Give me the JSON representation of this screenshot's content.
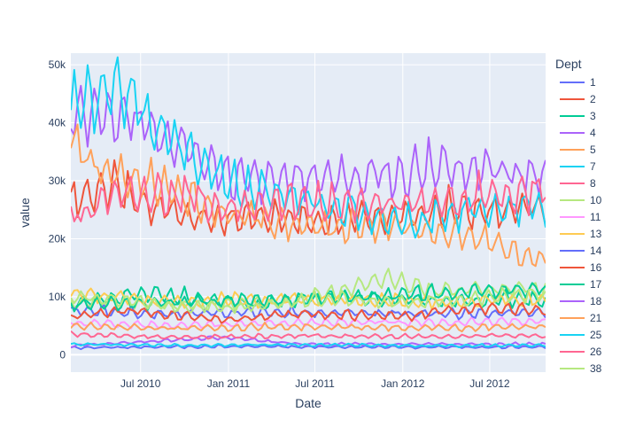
{
  "chart_data": {
    "type": "line",
    "xlabel": "Date",
    "ylabel": "value",
    "legend_title": "Dept",
    "legend_placement": "right",
    "grid": true,
    "xlim": [
      "2010-02-05",
      "2012-10-26"
    ],
    "ylim": [
      -3000,
      52000
    ],
    "x_ticks": [
      {
        "value": "2010-07-01",
        "label": "Jul 2010"
      },
      {
        "value": "2011-01-01",
        "label": "Jan 2011"
      },
      {
        "value": "2011-07-01",
        "label": "Jul 2011"
      },
      {
        "value": "2012-01-01",
        "label": "Jan 2012"
      },
      {
        "value": "2012-07-01",
        "label": "Jul 2012"
      }
    ],
    "y_ticks": [
      {
        "value": 0,
        "label": "0"
      },
      {
        "value": 10000,
        "label": "10k"
      },
      {
        "value": 20000,
        "label": "20k"
      },
      {
        "value": 30000,
        "label": "30k"
      },
      {
        "value": 40000,
        "label": "40k"
      },
      {
        "value": 50000,
        "label": "50k"
      }
    ],
    "x_start": "2010-02-05",
    "x_step_days": 7,
    "n_points": 143,
    "series": [
      {
        "name": "1",
        "color": "#636efa",
        "keypoints": [
          [
            "2010-02-05",
            1200
          ],
          [
            "2010-12-24",
            1400
          ],
          [
            "2011-12-23",
            1300
          ],
          [
            "2012-10-26",
            1300
          ]
        ]
      },
      {
        "name": "2",
        "color": "#EF553B",
        "keypoints": [
          [
            "2010-02-05",
            26000
          ],
          [
            "2010-05-01",
            29000
          ],
          [
            "2010-08-01",
            25000
          ],
          [
            "2010-12-01",
            23000
          ],
          [
            "2011-03-01",
            23500
          ],
          [
            "2011-08-01",
            23000
          ],
          [
            "2012-01-01",
            24000
          ],
          [
            "2012-06-01",
            24500
          ],
          [
            "2012-10-26",
            25000
          ]
        ]
      },
      {
        "name": "3",
        "color": "#00cc96",
        "keypoints": [
          [
            "2010-02-05",
            9000
          ],
          [
            "2010-08-01",
            10500
          ],
          [
            "2011-03-01",
            8500
          ],
          [
            "2011-08-01",
            10000
          ],
          [
            "2012-03-01",
            9000
          ],
          [
            "2012-10-26",
            9500
          ]
        ]
      },
      {
        "name": "4",
        "color": "#ab63fa",
        "keypoints": [
          [
            "2010-02-05",
            42000
          ],
          [
            "2010-06-01",
            40000
          ],
          [
            "2010-09-01",
            37000
          ],
          [
            "2011-01-01",
            30000
          ],
          [
            "2011-06-01",
            30000
          ],
          [
            "2012-01-01",
            31000
          ],
          [
            "2012-06-01",
            32000
          ],
          [
            "2012-10-26",
            31000
          ]
        ]
      },
      {
        "name": "5",
        "color": "#FFA15A",
        "keypoints": [
          [
            "2010-02-05",
            37000
          ],
          [
            "2010-04-01",
            32000
          ],
          [
            "2010-09-01",
            28000
          ],
          [
            "2011-01-01",
            24000
          ],
          [
            "2011-06-01",
            22000
          ],
          [
            "2012-01-01",
            22000
          ],
          [
            "2012-06-01",
            20000
          ],
          [
            "2012-10-26",
            16000
          ]
        ]
      },
      {
        "name": "7",
        "color": "#19d3f3",
        "keypoints": [
          [
            "2010-02-05",
            41000
          ],
          [
            "2010-05-15",
            46000
          ],
          [
            "2010-09-01",
            37000
          ],
          [
            "2011-01-01",
            29000
          ],
          [
            "2011-06-01",
            27000
          ],
          [
            "2012-01-01",
            22000
          ],
          [
            "2012-06-01",
            25000
          ],
          [
            "2012-10-26",
            25000
          ]
        ]
      },
      {
        "name": "8",
        "color": "#FF6692",
        "keypoints": [
          [
            "2010-02-05",
            23000
          ],
          [
            "2010-06-01",
            28000
          ],
          [
            "2010-10-01",
            27000
          ],
          [
            "2011-01-01",
            25000
          ],
          [
            "2011-06-01",
            26000
          ],
          [
            "2012-01-01",
            25500
          ],
          [
            "2012-06-01",
            27000
          ],
          [
            "2012-10-26",
            28000
          ]
        ]
      },
      {
        "name": "10",
        "color": "#B6E880",
        "keypoints": [
          [
            "2010-02-05",
            9000
          ],
          [
            "2010-10-01",
            8500
          ],
          [
            "2011-05-01",
            9000
          ],
          [
            "2011-12-01",
            13000
          ],
          [
            "2012-03-01",
            11000
          ],
          [
            "2012-10-26",
            11500
          ]
        ]
      },
      {
        "name": "11",
        "color": "#FF97FF",
        "keypoints": [
          [
            "2010-02-05",
            5500
          ],
          [
            "2010-09-01",
            5000
          ],
          [
            "2011-06-01",
            5500
          ],
          [
            "2012-03-01",
            5500
          ],
          [
            "2012-10-26",
            5800
          ]
        ]
      },
      {
        "name": "13",
        "color": "#FECB52",
        "keypoints": [
          [
            "2010-02-05",
            10500
          ],
          [
            "2010-09-01",
            9000
          ],
          [
            "2011-06-01",
            9500
          ],
          [
            "2012-03-01",
            9000
          ],
          [
            "2012-10-26",
            9500
          ]
        ]
      },
      {
        "name": "14",
        "color": "#636efa",
        "keypoints": [
          [
            "2010-02-05",
            7500
          ],
          [
            "2010-09-01",
            7000
          ],
          [
            "2011-06-01",
            7200
          ],
          [
            "2012-03-01",
            7000
          ],
          [
            "2012-10-26",
            7200
          ]
        ]
      },
      {
        "name": "16",
        "color": "#EF553B",
        "keypoints": [
          [
            "2010-02-05",
            6500
          ],
          [
            "2010-06-01",
            7500
          ],
          [
            "2011-01-01",
            6000
          ],
          [
            "2011-06-01",
            7000
          ],
          [
            "2012-01-01",
            6500
          ],
          [
            "2012-06-01",
            8000
          ],
          [
            "2012-10-26",
            7500
          ]
        ]
      },
      {
        "name": "17",
        "color": "#00cc96",
        "keypoints": [
          [
            "2010-02-05",
            8500
          ],
          [
            "2010-09-01",
            9000
          ],
          [
            "2011-06-01",
            9500
          ],
          [
            "2012-03-01",
            10500
          ],
          [
            "2012-10-26",
            11500
          ]
        ]
      },
      {
        "name": "18",
        "color": "#ab63fa",
        "keypoints": [
          [
            "2010-02-05",
            1500
          ],
          [
            "2010-12-24",
            3000
          ],
          [
            "2011-06-01",
            1800
          ],
          [
            "2012-01-01",
            1800
          ],
          [
            "2012-10-26",
            1800
          ]
        ]
      },
      {
        "name": "21",
        "color": "#FFA15A",
        "keypoints": [
          [
            "2010-02-05",
            5000
          ],
          [
            "2010-09-01",
            4500
          ],
          [
            "2011-06-01",
            4800
          ],
          [
            "2012-03-01",
            4600
          ],
          [
            "2012-10-26",
            4800
          ]
        ]
      },
      {
        "name": "25",
        "color": "#19d3f3",
        "keypoints": [
          [
            "2010-02-05",
            1800
          ],
          [
            "2010-09-01",
            1600
          ],
          [
            "2011-06-01",
            1700
          ],
          [
            "2012-03-01",
            1500
          ],
          [
            "2012-10-26",
            1600
          ]
        ]
      },
      {
        "name": "26",
        "color": "#FF6692",
        "keypoints": [
          [
            "2010-02-05",
            3500
          ],
          [
            "2010-09-01",
            3000
          ],
          [
            "2011-06-01",
            3200
          ],
          [
            "2012-03-01",
            3100
          ],
          [
            "2012-10-26",
            3300
          ]
        ]
      },
      {
        "name": "38",
        "color": "#B6E880",
        "keypoints": [
          [
            "2010-02-05",
            10000
          ],
          [
            "2010-08-01",
            8500
          ],
          [
            "2011-02-01",
            8000
          ],
          [
            "2011-08-01",
            9500
          ],
          [
            "2012-02-01",
            9000
          ],
          [
            "2012-10-26",
            10500
          ]
        ]
      }
    ]
  }
}
